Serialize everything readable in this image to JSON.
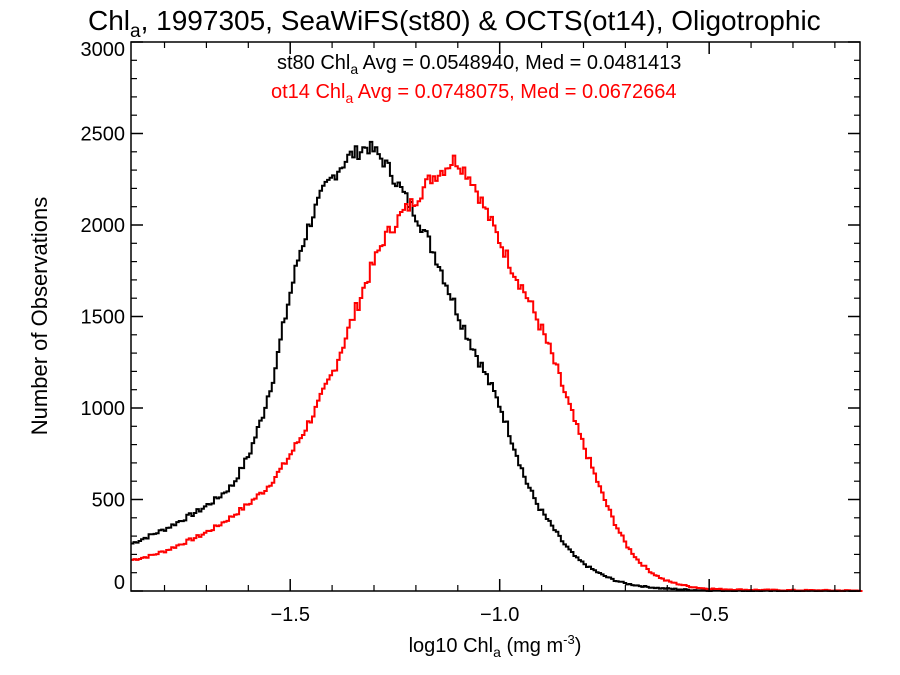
{
  "chart_data": {
    "type": "line",
    "step": true,
    "title": {
      "main": "Chl",
      "sub": "a",
      "rest": ", 1997305, SeaWiFS(st80) & OCTS(ot14), Oligotrophic"
    },
    "xlabel": {
      "main": "log10 Chl",
      "sub": "a",
      "rest": " (mg m",
      "sup": "-3",
      "end": ")"
    },
    "ylabel": "Number of Observations",
    "xlim": [
      -1.88,
      -0.14
    ],
    "ylim": [
      0,
      3000
    ],
    "xticks": [
      {
        "value": -1.5,
        "label": "−1.5"
      },
      {
        "value": -1.0,
        "label": "−1.0"
      },
      {
        "value": -0.5,
        "label": "−0.5"
      }
    ],
    "yticks": [
      {
        "value": 0,
        "label": "0"
      },
      {
        "value": 500,
        "label": "500"
      },
      {
        "value": 1000,
        "label": "1000"
      },
      {
        "value": 1500,
        "label": "1500"
      },
      {
        "value": 2000,
        "label": "2000"
      },
      {
        "value": 2500,
        "label": "2500"
      },
      {
        "value": 3000,
        "label": "3000"
      }
    ],
    "grid": false,
    "legend": "top-center",
    "series": [
      {
        "name": "st80",
        "color": "#000000",
        "stats_label": {
          "pre": "st80 Chl",
          "sub": "a",
          "post": " Avg = 0.0548940, Med = 0.0481413"
        },
        "x": [
          -1.88,
          -1.84,
          -1.8,
          -1.76,
          -1.72,
          -1.68,
          -1.64,
          -1.6,
          -1.57,
          -1.54,
          -1.51,
          -1.48,
          -1.45,
          -1.42,
          -1.39,
          -1.36,
          -1.34,
          -1.32,
          -1.3,
          -1.28,
          -1.26,
          -1.24,
          -1.22,
          -1.2,
          -1.18,
          -1.15,
          -1.12,
          -1.09,
          -1.06,
          -1.03,
          -1.0,
          -0.97,
          -0.94,
          -0.91,
          -0.88,
          -0.85,
          -0.82,
          -0.79,
          -0.76,
          -0.73,
          -0.7,
          -0.66,
          -0.62,
          -0.58,
          -0.54,
          -0.5,
          -0.45,
          -0.4,
          -0.3,
          -0.2,
          -0.14
        ],
        "values": [
          260,
          300,
          340,
          390,
          440,
          500,
          580,
          750,
          950,
          1200,
          1550,
          1850,
          2050,
          2200,
          2300,
          2380,
          2400,
          2430,
          2400,
          2350,
          2280,
          2200,
          2120,
          2050,
          1950,
          1800,
          1620,
          1450,
          1300,
          1150,
          1000,
          800,
          600,
          460,
          360,
          260,
          180,
          130,
          90,
          60,
          40,
          25,
          15,
          10,
          5,
          3,
          2,
          1,
          0,
          0,
          0
        ]
      },
      {
        "name": "ot14",
        "color": "#ff0000",
        "stats_label": {
          "pre": "ot14 Chl",
          "sub": "a",
          "post": " Avg = 0.0748075, Med = 0.0672664"
        },
        "x": [
          -1.88,
          -1.84,
          -1.8,
          -1.76,
          -1.72,
          -1.68,
          -1.64,
          -1.6,
          -1.56,
          -1.52,
          -1.48,
          -1.44,
          -1.4,
          -1.36,
          -1.32,
          -1.28,
          -1.24,
          -1.2,
          -1.17,
          -1.14,
          -1.11,
          -1.09,
          -1.07,
          -1.05,
          -1.03,
          -1.0,
          -0.97,
          -0.94,
          -0.91,
          -0.88,
          -0.85,
          -0.82,
          -0.79,
          -0.76,
          -0.73,
          -0.7,
          -0.67,
          -0.64,
          -0.61,
          -0.58,
          -0.55,
          -0.52,
          -0.48,
          -0.44,
          -0.4,
          -0.3,
          -0.2,
          -0.14
        ],
        "values": [
          170,
          190,
          220,
          260,
          300,
          350,
          410,
          480,
          560,
          680,
          830,
          1000,
          1200,
          1450,
          1700,
          1920,
          2050,
          2150,
          2250,
          2300,
          2360,
          2310,
          2250,
          2150,
          2050,
          1900,
          1750,
          1620,
          1470,
          1300,
          1100,
          900,
          720,
          540,
          380,
          250,
          160,
          100,
          60,
          40,
          25,
          15,
          10,
          8,
          6,
          4,
          3,
          2
        ]
      }
    ]
  }
}
